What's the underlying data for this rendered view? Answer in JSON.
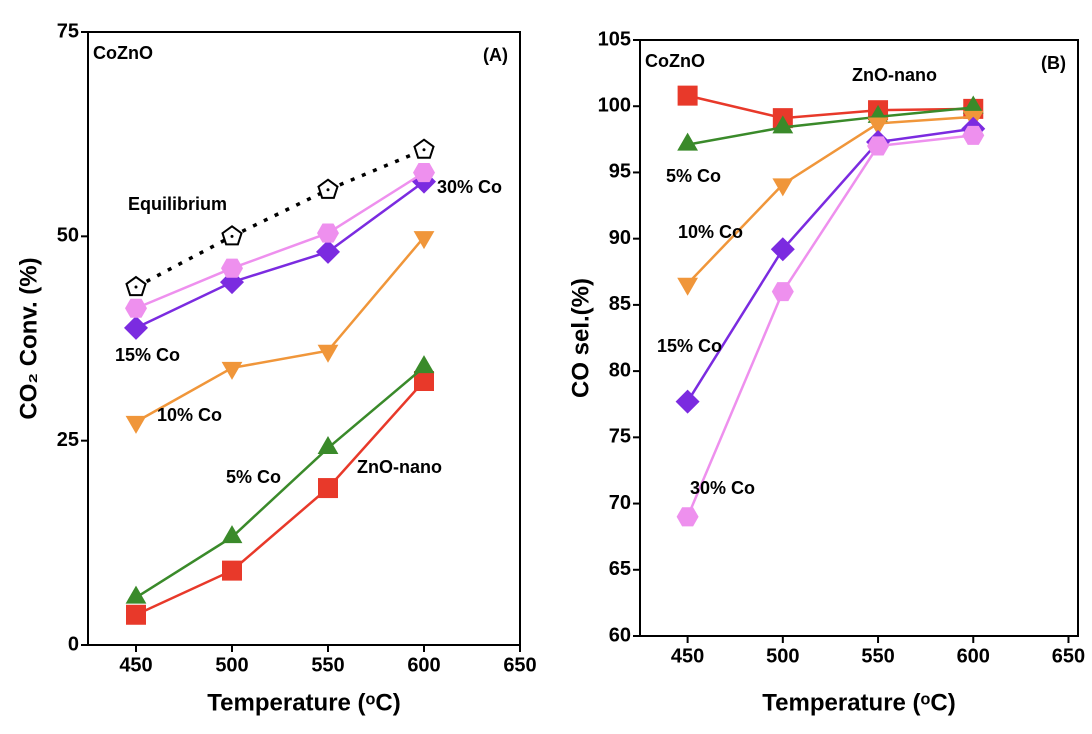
{
  "chart_data": [
    {
      "type": "line",
      "title": "CoZnO",
      "panel_label": "(A)",
      "x_label": "Temperature (ᵒC)",
      "y_label": "CO₂ Conv. (%)",
      "x": [
        450,
        500,
        550,
        600
      ],
      "xlim": [
        425,
        650
      ],
      "xticks": [
        450,
        500,
        550,
        600,
        650
      ],
      "ylim": [
        0,
        75
      ],
      "yticks": [
        0,
        25,
        50,
        75
      ],
      "series": [
        {
          "name": "ZnO-nano",
          "color": "#e8392a",
          "marker": "square",
          "values": [
            3.7,
            9.1,
            19.2,
            32.3
          ]
        },
        {
          "name": "5% Co",
          "color": "#3a8a2a",
          "marker": "triangle-up",
          "values": [
            5.8,
            13.2,
            24.1,
            34.0
          ]
        },
        {
          "name": "10% Co",
          "color": "#f0963a",
          "marker": "triangle-down",
          "values": [
            27.3,
            33.9,
            36.0,
            49.9
          ]
        },
        {
          "name": "15% Co",
          "color": "#7b2be0",
          "marker": "diamond",
          "values": [
            38.8,
            44.4,
            48.1,
            56.7
          ]
        },
        {
          "name": "30% Co",
          "color": "#ee90ee",
          "marker": "hexagon",
          "values": [
            41.2,
            46.1,
            50.4,
            57.8
          ]
        },
        {
          "name": "Equilibrium",
          "color": "#000000",
          "marker": "pentagon-open",
          "dash": "dotted",
          "values": [
            43.8,
            50.0,
            55.7,
            60.6
          ]
        }
      ]
    },
    {
      "type": "line",
      "title": "CoZnO",
      "panel_label": "(B)",
      "x_label": "Temperature (ᵒC)",
      "y_label": "CO sel.(%)",
      "x": [
        450,
        500,
        550,
        600
      ],
      "xlim": [
        425,
        655
      ],
      "xticks": [
        450,
        500,
        550,
        600,
        650
      ],
      "ylim": [
        60,
        105
      ],
      "yticks": [
        60,
        65,
        70,
        75,
        80,
        85,
        90,
        95,
        100,
        105
      ],
      "series": [
        {
          "name": "ZnO-nano",
          "color": "#e8392a",
          "marker": "square",
          "values": [
            100.8,
            99.1,
            99.7,
            99.8
          ]
        },
        {
          "name": "5% Co",
          "color": "#3a8a2a",
          "marker": "triangle-up",
          "values": [
            97.1,
            98.4,
            99.2,
            99.9
          ]
        },
        {
          "name": "10% Co",
          "color": "#f0963a",
          "marker": "triangle-down",
          "values": [
            86.6,
            94.1,
            98.7,
            99.2
          ]
        },
        {
          "name": "15% Co",
          "color": "#7b2be0",
          "marker": "diamond",
          "values": [
            77.7,
            89.2,
            97.3,
            98.3
          ]
        },
        {
          "name": "30% Co",
          "color": "#ee90ee",
          "marker": "hexagon",
          "values": [
            69.0,
            86.0,
            97.0,
            97.8
          ]
        }
      ]
    }
  ]
}
